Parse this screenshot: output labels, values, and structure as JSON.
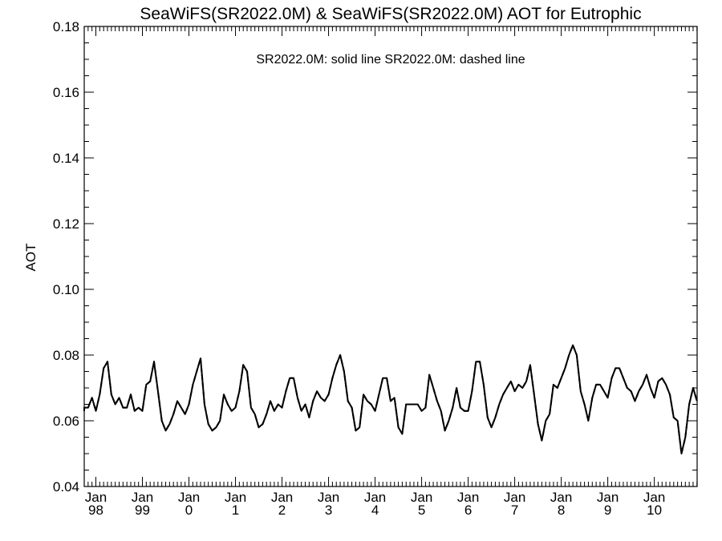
{
  "chart_data": {
    "type": "line",
    "title": "SeaWiFS(SR2022.0M) & SeaWiFS(SR2022.0M)  AOT for Eutrophic",
    "annotation": "SR2022.0M: solid line   SR2022.0M: dashed line",
    "ylabel": "AOT",
    "xlabel": "",
    "ylim": [
      0.04,
      0.18
    ],
    "yticks": [
      "0.04",
      "0.06",
      "0.08",
      "0.10",
      "0.12",
      "0.14",
      "0.16",
      "0.18"
    ],
    "x_range_years": [
      1997.75,
      2010.92
    ],
    "xticks": [
      {
        "year": 1998,
        "month": "Jan",
        "label": "98"
      },
      {
        "year": 1999,
        "month": "Jan",
        "label": "99"
      },
      {
        "year": 2000,
        "month": "Jan",
        "label": "0"
      },
      {
        "year": 2001,
        "month": "Jan",
        "label": "1"
      },
      {
        "year": 2002,
        "month": "Jan",
        "label": "2"
      },
      {
        "year": 2003,
        "month": "Jan",
        "label": "3"
      },
      {
        "year": 2004,
        "month": "Jan",
        "label": "4"
      },
      {
        "year": 2005,
        "month": "Jan",
        "label": "5"
      },
      {
        "year": 2006,
        "month": "Jan",
        "label": "6"
      },
      {
        "year": 2007,
        "month": "Jan",
        "label": "7"
      },
      {
        "year": 2008,
        "month": "Jan",
        "label": "8"
      },
      {
        "year": 2009,
        "month": "Jan",
        "label": "9"
      },
      {
        "year": 2010,
        "month": "Jan",
        "label": "10"
      }
    ],
    "grid": false,
    "legend": "none",
    "line_color": "#000000",
    "series": [
      {
        "style": "solid",
        "x_start": "1997-09",
        "step": "monthly",
        "values": [
          0.063,
          0.064,
          0.064,
          0.067,
          0.063,
          0.068,
          0.076,
          0.078,
          0.068,
          0.065,
          0.067,
          0.064,
          0.064,
          0.068,
          0.063,
          0.064,
          0.063,
          0.071,
          0.072,
          0.078,
          0.069,
          0.06,
          0.057,
          0.059,
          0.062,
          0.066,
          0.064,
          0.062,
          0.065,
          0.071,
          0.075,
          0.079,
          0.065,
          0.059,
          0.057,
          0.058,
          0.06,
          0.068,
          0.065,
          0.063,
          0.064,
          0.069,
          0.077,
          0.075,
          0.064,
          0.062,
          0.058,
          0.059,
          0.062,
          0.066,
          0.063,
          0.065,
          0.064,
          0.069,
          0.073,
          0.073,
          0.067,
          0.063,
          0.065,
          0.061,
          0.066,
          0.069,
          0.067,
          0.066,
          0.068,
          0.073,
          0.077,
          0.08,
          0.075,
          0.066,
          0.064,
          0.057,
          0.058,
          0.068,
          0.066,
          0.065,
          0.063,
          0.068,
          0.073,
          0.073,
          0.066,
          0.067,
          0.058,
          0.056,
          0.065,
          0.065,
          0.065,
          0.065,
          0.063,
          0.064,
          0.074,
          0.07,
          0.066,
          0.063,
          0.057,
          0.06,
          0.064,
          0.07,
          0.064,
          0.063,
          0.063,
          0.069,
          0.078,
          0.078,
          0.071,
          0.061,
          0.058,
          0.061,
          0.065,
          0.068,
          0.07,
          0.072,
          0.069,
          0.071,
          0.07,
          0.072,
          0.077,
          0.068,
          0.059,
          0.054,
          0.06,
          0.062,
          0.071,
          0.07,
          0.073,
          0.076,
          0.08,
          0.083,
          0.08,
          0.069,
          0.065,
          0.06,
          0.067,
          0.071,
          0.071,
          0.069,
          0.067,
          0.073,
          0.076,
          0.076,
          0.073,
          0.07,
          0.069,
          0.066,
          0.069,
          0.071,
          0.074,
          0.07,
          0.067,
          0.072,
          0.073,
          0.071,
          0.068,
          0.061,
          0.06,
          0.05,
          0.055,
          0.065,
          0.07,
          0.066
        ]
      },
      {
        "style": "dashed",
        "x_start": "1997-09",
        "step": "monthly",
        "values": [
          0.063,
          0.064,
          0.064,
          0.067,
          0.063,
          0.068,
          0.076,
          0.078,
          0.068,
          0.065,
          0.067,
          0.064,
          0.064,
          0.068,
          0.063,
          0.064,
          0.063,
          0.071,
          0.072,
          0.078,
          0.069,
          0.06,
          0.057,
          0.059,
          0.062,
          0.066,
          0.064,
          0.062,
          0.065,
          0.071,
          0.075,
          0.079,
          0.065,
          0.059,
          0.057,
          0.058,
          0.06,
          0.068,
          0.065,
          0.063,
          0.064,
          0.069,
          0.077,
          0.075,
          0.064,
          0.062,
          0.058,
          0.059,
          0.062,
          0.066,
          0.063,
          0.065,
          0.064,
          0.069,
          0.073,
          0.073,
          0.067,
          0.063,
          0.065,
          0.061,
          0.066,
          0.069,
          0.067,
          0.066,
          0.068,
          0.073,
          0.077,
          0.08,
          0.075,
          0.066,
          0.064,
          0.057,
          0.058,
          0.068,
          0.066,
          0.065,
          0.063,
          0.068,
          0.073,
          0.073,
          0.066,
          0.067,
          0.058,
          0.056,
          0.065,
          0.065,
          0.065,
          0.065,
          0.063,
          0.064,
          0.074,
          0.07,
          0.066,
          0.063,
          0.057,
          0.06,
          0.064,
          0.07,
          0.064,
          0.063,
          0.063,
          0.069,
          0.078,
          0.078,
          0.071,
          0.061,
          0.058,
          0.061,
          0.065,
          0.068,
          0.07,
          0.072,
          0.069,
          0.071,
          0.07,
          0.072,
          0.077,
          0.068,
          0.059,
          0.054,
          0.06,
          0.062,
          0.071,
          0.07,
          0.073,
          0.076,
          0.08,
          0.083,
          0.08,
          0.069,
          0.065,
          0.06,
          0.067,
          0.071,
          0.071,
          0.069,
          0.067,
          0.073,
          0.076,
          0.076,
          0.073,
          0.07,
          0.069,
          0.066,
          0.069,
          0.071,
          0.074,
          0.07,
          0.067,
          0.072,
          0.073,
          0.071,
          0.068,
          0.061,
          0.06,
          0.05,
          0.055,
          0.065,
          0.07,
          0.066
        ]
      }
    ]
  }
}
